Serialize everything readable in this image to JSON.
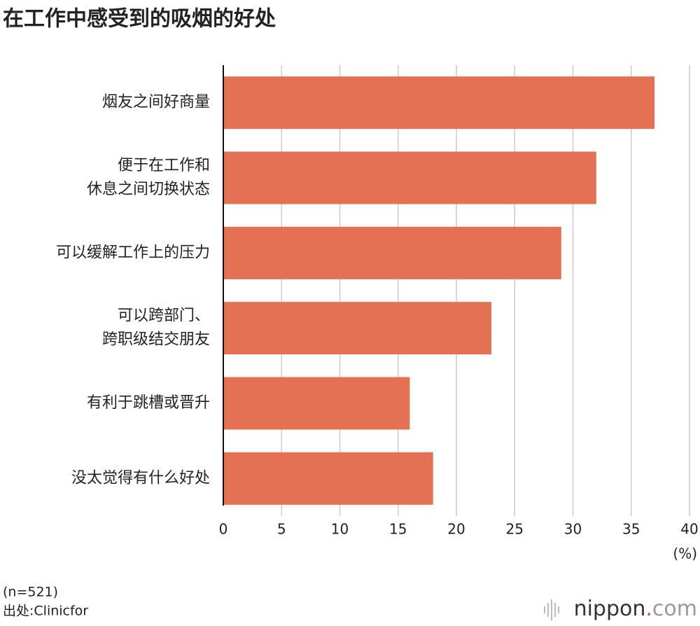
{
  "chart_data": {
    "type": "bar",
    "orientation": "horizontal",
    "title": "在工作中感受到的吸烟的好处",
    "categories": [
      [
        "烟友之间好商量"
      ],
      [
        "便于在工作和",
        "休息之间切换状态"
      ],
      [
        "可以缓解工作上的压力"
      ],
      [
        "可以跨部门、",
        "跨职级结交朋友"
      ],
      [
        "有利于跳槽或晋升"
      ],
      [
        "没太觉得有什么好处"
      ]
    ],
    "values": [
      37,
      32,
      29,
      23,
      16,
      18
    ],
    "color": "#e57155",
    "xlim": [
      0,
      40
    ],
    "xticks": [
      0,
      5,
      10,
      15,
      20,
      25,
      30,
      35,
      40
    ],
    "x_unit": "(%)",
    "grid": true,
    "note": "(n=521)",
    "source": "出处:Clinicfor",
    "logo": [
      "nippon",
      ".",
      "com"
    ]
  }
}
